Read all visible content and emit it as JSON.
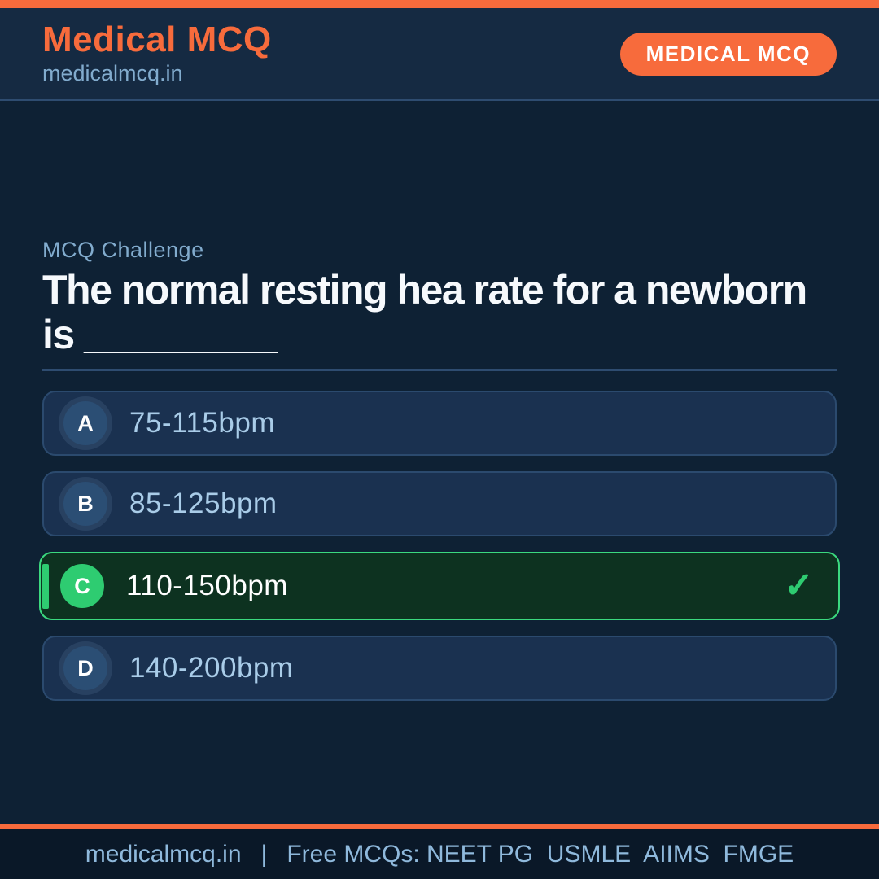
{
  "brand": {
    "title": "Medical MCQ",
    "subtitle": "medicalmcq.in",
    "badge": "MEDICAL MCQ"
  },
  "question": {
    "label": "MCQ Challenge",
    "text": "The normal resting hea rate for a newborn is _________"
  },
  "options": [
    {
      "letter": "A",
      "text": "75-115bpm",
      "selected": false
    },
    {
      "letter": "B",
      "text": "85-125bpm",
      "selected": false
    },
    {
      "letter": "C",
      "text": "110-150bpm",
      "selected": true,
      "check": "✓"
    },
    {
      "letter": "D",
      "text": "140-200bpm",
      "selected": false
    }
  ],
  "footer": {
    "site": "medicalmcq.in",
    "separator": "|",
    "text": "Free MCQs: NEET PG  USMLE  AIIMS  FMGE"
  },
  "colors": {
    "accent_orange": "#F76B3C",
    "correct_green": "#2ECC71",
    "page_background": "#0E2134",
    "header_background": "#152A42",
    "card_background": "#1A3150",
    "selected_card_background": "#0D3220"
  }
}
